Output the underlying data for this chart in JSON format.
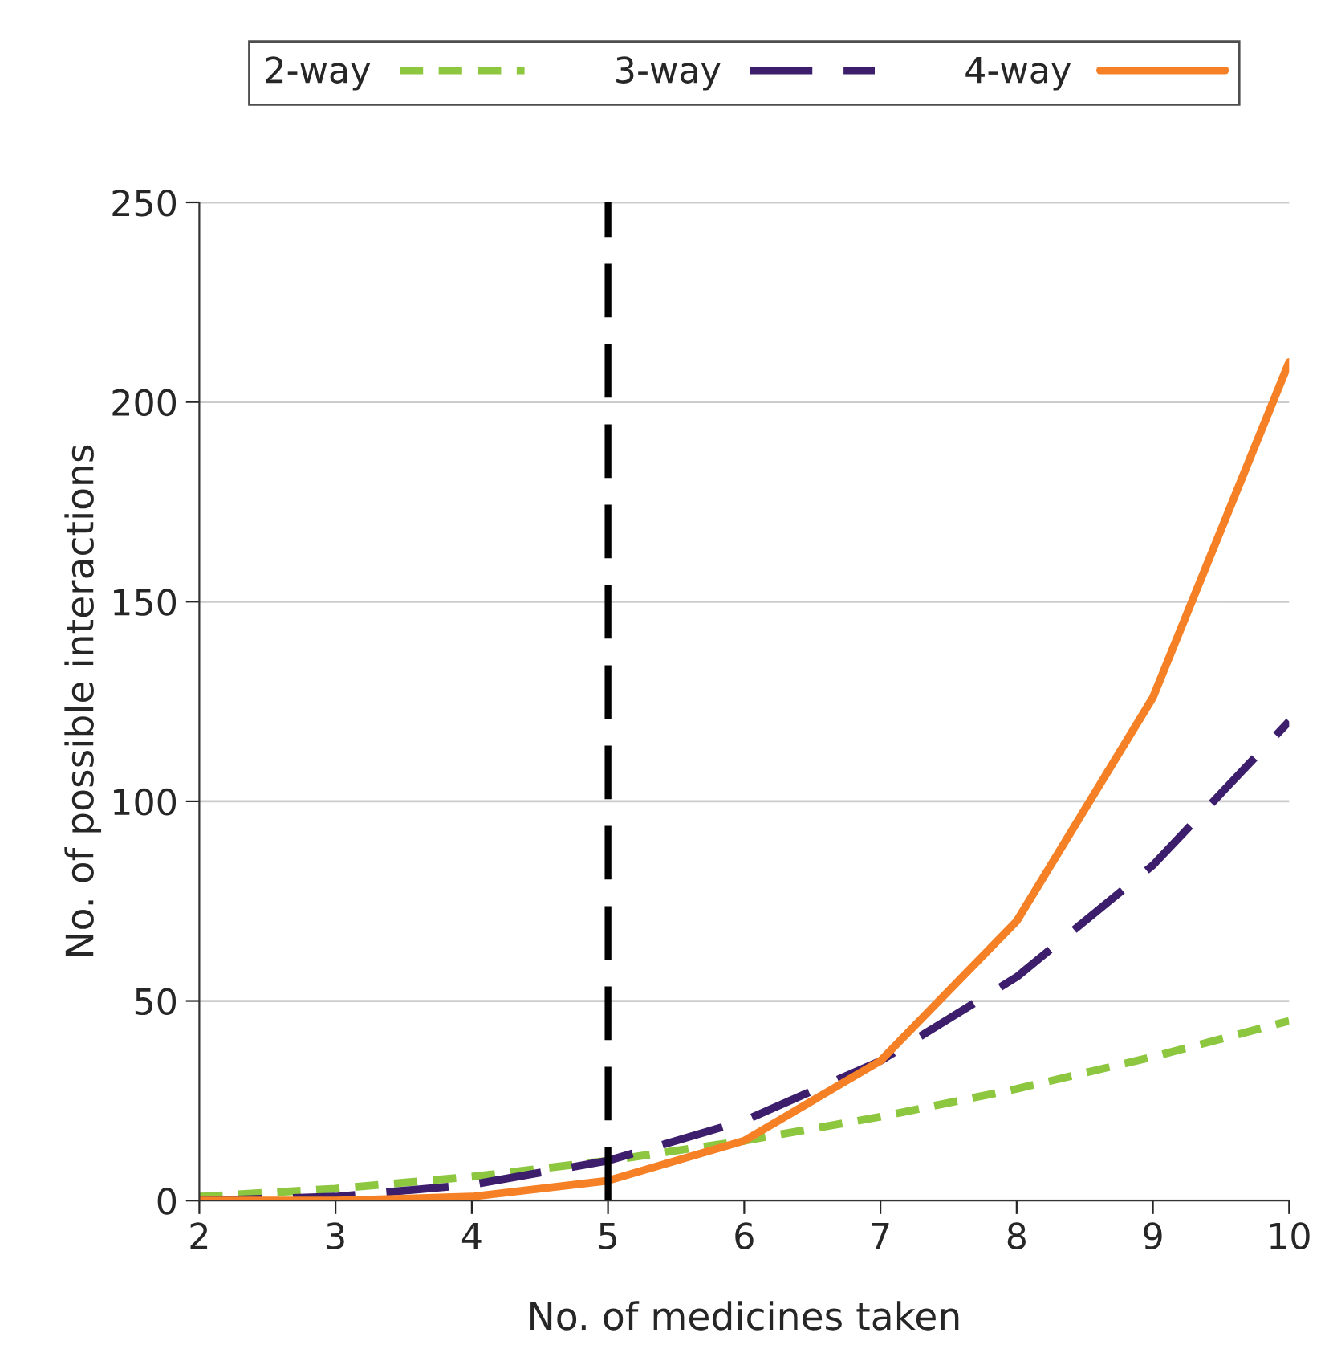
{
  "chart_data": {
    "type": "line",
    "xlabel": "No. of medicines taken",
    "ylabel": "No. of possible interactions",
    "x": [
      2,
      3,
      4,
      5,
      6,
      7,
      8,
      9,
      10
    ],
    "series": [
      {
        "name": "2-way",
        "color": "#8dc63f",
        "line_style": "dotted",
        "values": [
          1,
          3,
          6,
          10,
          15,
          21,
          28,
          36,
          45
        ]
      },
      {
        "name": "3-way",
        "color": "#3d1e6d",
        "line_style": "dashed",
        "values": [
          0,
          1,
          4,
          10,
          20,
          35,
          56,
          84,
          120
        ]
      },
      {
        "name": "4-way",
        "color": "#f58025",
        "line_style": "solid",
        "values": [
          0,
          0,
          1,
          5,
          15,
          35,
          70,
          126,
          210
        ]
      }
    ],
    "xlim": [
      2,
      10
    ],
    "ylim": [
      0,
      250
    ],
    "xticks": [
      2,
      3,
      4,
      5,
      6,
      7,
      8,
      9,
      10
    ],
    "yticks": [
      0,
      50,
      100,
      150,
      200,
      250
    ],
    "ref_lines": [
      {
        "axis": "x",
        "value": 5,
        "color": "#000000",
        "line_style": "dashed"
      }
    ],
    "grid": "y",
    "legend": "top",
    "marker": "none"
  }
}
